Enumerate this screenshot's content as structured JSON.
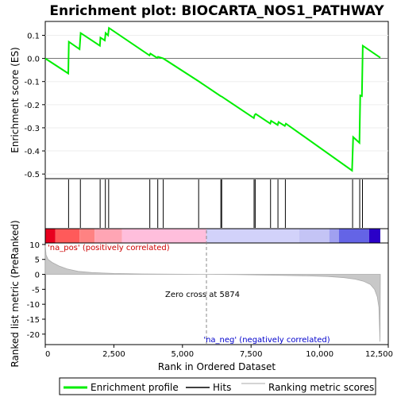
{
  "title": "Enrichment plot: BIOCARTA_NOS1_PATHWAY",
  "colors": {
    "profile": "#00ee00",
    "hits": "#000000",
    "metric_fill": "#c8c8c8",
    "metric_line": "#aaaaaa"
  },
  "chart_data": [
    {
      "type": "line",
      "name": "enrichment-profile",
      "ylabel": "Enrichment score (ES)",
      "xlim": [
        0,
        12500
      ],
      "ylim": [
        -0.52,
        0.16
      ],
      "yticks": [
        0.1,
        0.0,
        -0.1,
        -0.2,
        -0.3,
        -0.4,
        -0.5
      ],
      "ytick_labels": [
        "0.1",
        "0.0",
        "-0.1",
        "-0.2",
        "-0.3",
        "-0.4",
        "-0.5"
      ],
      "points": [
        [
          0,
          0.0
        ],
        [
          840,
          -0.065
        ],
        [
          860,
          0.072
        ],
        [
          1250,
          0.04
        ],
        [
          1290,
          0.11
        ],
        [
          1990,
          0.055
        ],
        [
          2010,
          0.09
        ],
        [
          2170,
          0.078
        ],
        [
          2200,
          0.11
        ],
        [
          2290,
          0.1
        ],
        [
          2320,
          0.132
        ],
        [
          3800,
          0.013
        ],
        [
          3830,
          0.021
        ],
        [
          4080,
          0.002
        ],
        [
          4110,
          0.007
        ],
        [
          4300,
          0.0
        ],
        [
          5580,
          -0.098
        ],
        [
          6390,
          -0.163
        ],
        [
          6430,
          -0.165
        ],
        [
          7600,
          -0.258
        ],
        [
          7630,
          -0.245
        ],
        [
          7670,
          -0.24
        ],
        [
          8200,
          -0.282
        ],
        [
          8230,
          -0.27
        ],
        [
          8470,
          -0.288
        ],
        [
          8500,
          -0.275
        ],
        [
          8730,
          -0.292
        ],
        [
          8770,
          -0.282
        ],
        [
          11180,
          -0.485
        ],
        [
          11220,
          -0.34
        ],
        [
          11450,
          -0.365
        ],
        [
          11480,
          -0.16
        ],
        [
          11540,
          -0.163
        ],
        [
          11570,
          0.055
        ],
        [
          12210,
          0.003
        ]
      ]
    },
    {
      "type": "line",
      "name": "hits",
      "hits": [
        850,
        1280,
        2000,
        2190,
        2310,
        3810,
        4100,
        4300,
        5590,
        6400,
        6430,
        7610,
        7650,
        8210,
        8480,
        8750,
        11200,
        11460,
        11560
      ]
    },
    {
      "type": "area",
      "name": "ranking-metric",
      "xlabel": "Rank in Ordered Dataset",
      "ylabel": "Ranked list metric (PreRanked)",
      "xlim": [
        0,
        12500
      ],
      "ylim": [
        -23.5,
        10.5
      ],
      "xticks": [
        0,
        2500,
        5000,
        7500,
        10000,
        12500
      ],
      "xtick_labels": [
        "0",
        "2,500",
        "5,000",
        "7,500",
        "10,000",
        "12,500"
      ],
      "yticks": [
        10,
        5,
        0,
        -5,
        -10,
        -15,
        -20
      ],
      "ytick_labels": [
        "10",
        "5",
        "0",
        "-5",
        "-10",
        "-15",
        "-20"
      ],
      "points": [
        [
          0,
          9.8
        ],
        [
          30,
          6.5
        ],
        [
          100,
          5.0
        ],
        [
          250,
          4.0
        ],
        [
          500,
          2.8
        ],
        [
          800,
          1.8
        ],
        [
          1200,
          1.0
        ],
        [
          1700,
          0.6
        ],
        [
          2500,
          0.3
        ],
        [
          3500,
          0.15
        ],
        [
          4500,
          0.05
        ],
        [
          5874,
          0.0
        ],
        [
          7000,
          -0.1
        ],
        [
          8500,
          -0.3
        ],
        [
          9500,
          -0.5
        ],
        [
          10300,
          -0.7
        ],
        [
          10900,
          -1.1
        ],
        [
          11300,
          -1.6
        ],
        [
          11600,
          -2.3
        ],
        [
          11850,
          -3.4
        ],
        [
          12000,
          -5.0
        ],
        [
          12100,
          -7.5
        ],
        [
          12160,
          -11.0
        ],
        [
          12200,
          -22.5
        ],
        [
          12210,
          0.0
        ]
      ],
      "annotations": {
        "pos_label": "'na_pos' (positively correlated)",
        "neg_label": "'na_neg' (negatively correlated)",
        "zero_cross_label": "Zero cross at 5874",
        "zero_cross": 5874
      }
    }
  ],
  "color_bar": {
    "segments": [
      {
        "start": 0,
        "end": 370,
        "color": "#e8001e"
      },
      {
        "start": 370,
        "end": 1250,
        "color": "#ff5a5a"
      },
      {
        "start": 1250,
        "end": 1800,
        "color": "#ff8282"
      },
      {
        "start": 1800,
        "end": 2800,
        "color": "#ffa5b4"
      },
      {
        "start": 2800,
        "end": 5874,
        "color": "#ffbedc"
      },
      {
        "start": 5874,
        "end": 9250,
        "color": "#d2d2fa"
      },
      {
        "start": 9250,
        "end": 10350,
        "color": "#c4c4f5"
      },
      {
        "start": 10350,
        "end": 10700,
        "color": "#a0a0f0"
      },
      {
        "start": 10700,
        "end": 11800,
        "color": "#6464e6"
      },
      {
        "start": 11800,
        "end": 12210,
        "color": "#2a00c8"
      }
    ]
  },
  "legend": {
    "items": [
      {
        "label": "Enrichment profile",
        "symbol": "profile"
      },
      {
        "label": "Hits",
        "symbol": "hits"
      },
      {
        "label": "Ranking metric scores",
        "symbol": "metric"
      }
    ]
  }
}
